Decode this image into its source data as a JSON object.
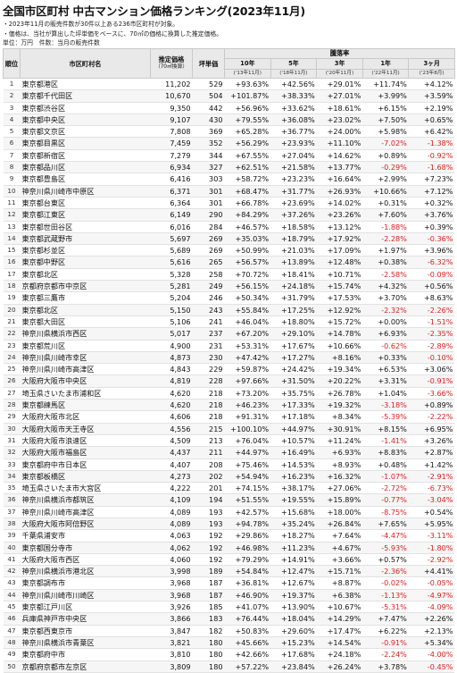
{
  "title": "全国市区町村 中古マンション価格ランキング(2023年11月)",
  "notes": [
    "・2023年11月の販売件数が30件以上ある236市区町村が対象。",
    "・価格は、当社が算出した坪単価をベースに、70㎡の価格に換算した推定価格。"
  ],
  "unit_note": "単位：万円　件数：当月の販売件数",
  "colors": {
    "header_bg": "#e9e9e9",
    "negative": "#d62020",
    "stripe": "#f6f6f6"
  },
  "table_header": {
    "rank": "順位",
    "city": "市区町村名",
    "price": "推定価格",
    "price_sub": "（70㎡換算）",
    "tsubo": "坪単価",
    "rise_group": "騰落率",
    "periods": [
      "10年",
      "5年",
      "3年",
      "1年",
      "3ヶ月"
    ],
    "bases": [
      "('13年11月)",
      "('18年11月)",
      "('20年11月)",
      "('22年11月)",
      "('23年8月)"
    ]
  },
  "chart_data": {
    "type": "table",
    "title": "全国市区町村 中古マンション価格ランキング(2023年11月)",
    "columns": [
      "順位",
      "市区町村名",
      "推定価格",
      "坪単価",
      "10年",
      "5年",
      "3年",
      "1年",
      "3ヶ月"
    ],
    "rows": [
      [
        "1",
        "東京都港区",
        "11,202",
        "529",
        "+93.63%",
        "+42.56%",
        "+29.01%",
        "+11.74%",
        "+4.12%"
      ],
      [
        "2",
        "東京都千代田区",
        "10,670",
        "504",
        "+101.87%",
        "+38.33%",
        "+27.01%",
        "+3.99%",
        "+3.59%"
      ],
      [
        "3",
        "東京都渋谷区",
        "9,350",
        "442",
        "+56.96%",
        "+33.62%",
        "+18.61%",
        "+6.15%",
        "+2.19%"
      ],
      [
        "4",
        "東京都中央区",
        "9,107",
        "430",
        "+79.55%",
        "+36.08%",
        "+23.02%",
        "+7.50%",
        "+0.65%"
      ],
      [
        "5",
        "東京都文京区",
        "7,808",
        "369",
        "+65.28%",
        "+36.77%",
        "+24.00%",
        "+5.98%",
        "+6.42%"
      ],
      [
        "6",
        "東京都目黒区",
        "7,459",
        "352",
        "+56.29%",
        "+23.93%",
        "+11.10%",
        "-7.02%",
        "-1.38%"
      ],
      [
        "7",
        "東京都新宿区",
        "7,279",
        "344",
        "+67.55%",
        "+27.04%",
        "+14.62%",
        "+0.89%",
        "-0.92%"
      ],
      [
        "8",
        "東京都品川区",
        "6,934",
        "327",
        "+62.51%",
        "+21.58%",
        "+13.77%",
        "-0.29%",
        "-1.68%"
      ],
      [
        "9",
        "東京都豊島区",
        "6,416",
        "303",
        "+58.72%",
        "+23.23%",
        "+16.64%",
        "+2.99%",
        "+7.23%"
      ],
      [
        "10",
        "神奈川県川崎市中原区",
        "6,371",
        "301",
        "+68.47%",
        "+31.77%",
        "+26.93%",
        "+10.66%",
        "+7.12%"
      ],
      [
        "11",
        "東京都台東区",
        "6,364",
        "301",
        "+66.78%",
        "+23.69%",
        "+14.02%",
        "+0.31%",
        "+0.32%"
      ],
      [
        "12",
        "東京都江東区",
        "6,149",
        "290",
        "+84.29%",
        "+37.26%",
        "+23.26%",
        "+7.60%",
        "+3.76%"
      ],
      [
        "13",
        "東京都世田谷区",
        "6,016",
        "284",
        "+46.57%",
        "+18.58%",
        "+13.12%",
        "-1.88%",
        "+0.39%"
      ],
      [
        "14",
        "東京都武蔵野市",
        "5,697",
        "269",
        "+35.03%",
        "+18.79%",
        "+17.92%",
        "-2.28%",
        "-0.36%"
      ],
      [
        "15",
        "東京都杉並区",
        "5,689",
        "269",
        "+50.99%",
        "+21.03%",
        "+17.09%",
        "+1.97%",
        "+3.96%"
      ],
      [
        "16",
        "東京都中野区",
        "5,616",
        "265",
        "+56.57%",
        "+13.89%",
        "+12.48%",
        "+0.38%",
        "-6.32%"
      ],
      [
        "17",
        "東京都北区",
        "5,328",
        "258",
        "+70.72%",
        "+18.41%",
        "+10.71%",
        "-2.58%",
        "-0.09%"
      ],
      [
        "18",
        "京都府京都市中京区",
        "5,281",
        "249",
        "+56.15%",
        "+24.18%",
        "+15.74%",
        "+4.32%",
        "+0.56%"
      ],
      [
        "19",
        "東京都三鷹市",
        "5,204",
        "246",
        "+50.34%",
        "+31.79%",
        "+17.53%",
        "+3.70%",
        "+8.63%"
      ],
      [
        "20",
        "東京都北区",
        "5,150",
        "243",
        "+55.84%",
        "+17.25%",
        "+12.92%",
        "-2.32%",
        "-2.26%"
      ],
      [
        "21",
        "東京都大田区",
        "5,106",
        "241",
        "+46.04%",
        "+18.80%",
        "+15.72%",
        "+0.00%",
        "-1.51%"
      ],
      [
        "22",
        "神奈川県横浜市西区",
        "5,017",
        "237",
        "+67.20%",
        "+29.10%",
        "+14.78%",
        "+6.93%",
        "-2.35%"
      ],
      [
        "23",
        "東京都荒川区",
        "4,900",
        "231",
        "+53.31%",
        "+17.67%",
        "+10.66%",
        "-0.62%",
        "-2.89%"
      ],
      [
        "24",
        "神奈川県川崎市幸区",
        "4,873",
        "230",
        "+47.42%",
        "+17.27%",
        "+8.16%",
        "+0.33%",
        "-0.10%"
      ],
      [
        "25",
        "神奈川県川崎市高津区",
        "4,843",
        "229",
        "+59.87%",
        "+24.42%",
        "+19.34%",
        "+6.53%",
        "+3.06%"
      ],
      [
        "26",
        "大阪府大阪市中央区",
        "4,819",
        "228",
        "+97.66%",
        "+31.50%",
        "+20.22%",
        "+3.31%",
        "-0.91%"
      ],
      [
        "27",
        "埼玉県さいたま市浦和区",
        "4,620",
        "218",
        "+73.20%",
        "+35.75%",
        "+26.78%",
        "+1.04%",
        "-3.66%"
      ],
      [
        "28",
        "東京都練馬区",
        "4,620",
        "218",
        "+46.23%",
        "+17.33%",
        "+19.32%",
        "-3.18%",
        "+0.89%"
      ],
      [
        "29",
        "大阪府大阪市北区",
        "4,606",
        "218",
        "+91.31%",
        "+17.18%",
        "+8.34%",
        "-5.39%",
        "-2.22%"
      ],
      [
        "30",
        "大阪府大阪市天王寺区",
        "4,556",
        "215",
        "+100.10%",
        "+44.97%",
        "+30.91%",
        "+8.15%",
        "+6.95%"
      ],
      [
        "31",
        "大阪府大阪市浪速区",
        "4,509",
        "213",
        "+76.04%",
        "+10.57%",
        "+11.24%",
        "-1.41%",
        "+3.26%"
      ],
      [
        "32",
        "大阪府大阪市福島区",
        "4,437",
        "211",
        "+44.97%",
        "+16.49%",
        "+6.93%",
        "+8.83%",
        "+2.87%"
      ],
      [
        "33",
        "東京都府中市日本区",
        "4,407",
        "208",
        "+75.46%",
        "+14.53%",
        "+8.93%",
        "+0.48%",
        "+1.42%"
      ],
      [
        "34",
        "東京都板橋区",
        "4,273",
        "202",
        "+54.94%",
        "+16.23%",
        "+16.32%",
        "-1.07%",
        "-2.91%"
      ],
      [
        "35",
        "埼玉県さいたま市大宮区",
        "4,222",
        "201",
        "+74.15%",
        "+38.17%",
        "+27.06%",
        "-2.72%",
        "-6.73%"
      ],
      [
        "36",
        "神奈川県横浜市都筑区",
        "4,109",
        "194",
        "+51.55%",
        "+19.55%",
        "+15.89%",
        "-0.77%",
        "-3.04%"
      ],
      [
        "37",
        "神奈川県川崎市高津区",
        "4,089",
        "193",
        "+42.57%",
        "+15.68%",
        "+18.00%",
        "-8.75%",
        "+0.54%"
      ],
      [
        "38",
        "大阪府大阪市阿倍野区",
        "4,089",
        "193",
        "+94.78%",
        "+35.24%",
        "+26.84%",
        "+7.65%",
        "+5.95%"
      ],
      [
        "39",
        "千葉県浦安市",
        "4,063",
        "192",
        "+29.86%",
        "+18.27%",
        "+7.64%",
        "-4.47%",
        "-3.11%"
      ],
      [
        "40",
        "東京都国分寺市",
        "4,062",
        "192",
        "+46.98%",
        "+11.23%",
        "+4.67%",
        "-5.93%",
        "-1.80%"
      ],
      [
        "41",
        "大阪府大阪市西区",
        "4,060",
        "192",
        "+79.29%",
        "+14.91%",
        "+3.66%",
        "+0.57%",
        "-2.92%"
      ],
      [
        "42",
        "神奈川県横浜市港北区",
        "3,998",
        "189",
        "+54.84%",
        "+12.47%",
        "+15.71%",
        "-2.36%",
        "+4.41%"
      ],
      [
        "43",
        "東京都調布市",
        "3,968",
        "187",
        "+36.81%",
        "+12.67%",
        "+8.87%",
        "-0.02%",
        "-0.05%"
      ],
      [
        "44",
        "神奈川県川崎市川崎区",
        "3,968",
        "187",
        "+46.90%",
        "+19.37%",
        "+6.38%",
        "-1.13%",
        "-4.97%"
      ],
      [
        "45",
        "東京都江戸川区",
        "3,926",
        "185",
        "+41.07%",
        "+13.90%",
        "+10.67%",
        "-5.31%",
        "-4.09%"
      ],
      [
        "46",
        "兵庫県神戸市中央区",
        "3,866",
        "183",
        "+76.44%",
        "+18.04%",
        "+14.29%",
        "+7.47%",
        "+2.26%"
      ],
      [
        "47",
        "東京都西東京市",
        "3,847",
        "182",
        "+50.83%",
        "+29.60%",
        "+17.47%",
        "+6.22%",
        "+2.13%"
      ],
      [
        "48",
        "神奈川県横浜市青葉区",
        "3,821",
        "180",
        "+45.66%",
        "+15.23%",
        "+14.54%",
        "-0.91%",
        "+5.34%"
      ],
      [
        "49",
        "東京都府中市",
        "3,810",
        "180",
        "+42.66%",
        "+17.68%",
        "+24.18%",
        "-2.24%",
        "-4.00%"
      ],
      [
        "50",
        "京都府京都市左京区",
        "3,809",
        "180",
        "+57.22%",
        "+23.84%",
        "+26.24%",
        "+3.78%",
        "-0.45%"
      ]
    ]
  }
}
